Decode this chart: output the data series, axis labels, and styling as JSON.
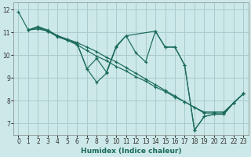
{
  "xlabel": "Humidex (Indice chaleur)",
  "xlim": [
    -0.5,
    23.5
  ],
  "ylim": [
    6.5,
    12.3
  ],
  "xticks": [
    0,
    1,
    2,
    3,
    4,
    5,
    6,
    7,
    8,
    9,
    10,
    11,
    12,
    13,
    14,
    15,
    16,
    17,
    18,
    19,
    20,
    21,
    22,
    23
  ],
  "yticks": [
    7,
    8,
    9,
    10,
    11,
    12
  ],
  "bg_color": "#cce8e8",
  "grid_color": "#aacccc",
  "line_color": "#1a6b5a",
  "lines": [
    {
      "x": [
        0,
        1,
        2,
        3,
        4,
        5,
        6,
        7,
        8,
        9,
        10,
        11,
        12,
        13,
        14,
        15,
        16,
        17,
        18,
        19,
        20,
        21,
        22,
        23
      ],
      "y": [
        11.9,
        11.1,
        11.15,
        11.05,
        10.8,
        10.65,
        10.45,
        10.2,
        9.95,
        9.75,
        9.5,
        9.3,
        9.05,
        8.85,
        8.6,
        8.4,
        8.15,
        7.95,
        7.7,
        7.5,
        7.5,
        7.5,
        7.9,
        8.3
      ]
    },
    {
      "x": [
        1,
        2,
        3,
        4,
        5,
        6,
        7,
        8,
        9,
        10,
        11,
        12,
        13,
        14,
        15,
        16,
        17,
        18,
        19,
        20,
        21,
        22,
        23
      ],
      "y": [
        11.1,
        11.25,
        11.1,
        10.85,
        10.7,
        10.55,
        10.35,
        10.15,
        9.9,
        9.7,
        9.45,
        9.2,
        8.95,
        8.7,
        8.45,
        8.2,
        7.95,
        7.7,
        7.45,
        7.45,
        7.45,
        7.9,
        8.3
      ]
    },
    {
      "x": [
        1,
        2,
        3,
        4,
        5,
        6,
        7,
        8,
        9,
        10,
        11,
        12,
        13,
        14,
        15,
        16,
        17,
        18,
        19,
        20,
        21,
        22,
        23
      ],
      "y": [
        11.1,
        11.25,
        11.05,
        10.85,
        10.65,
        10.5,
        9.4,
        9.85,
        9.25,
        10.4,
        10.85,
        10.1,
        9.7,
        11.05,
        10.35,
        10.35,
        9.55,
        6.7,
        7.3,
        7.4,
        7.4,
        7.9,
        8.3
      ]
    },
    {
      "x": [
        1,
        2,
        3,
        4,
        5,
        6,
        7,
        8,
        9,
        10,
        11,
        14,
        15,
        16,
        17,
        18,
        19,
        20,
        21,
        22,
        23
      ],
      "y": [
        11.1,
        11.2,
        11.05,
        10.85,
        10.65,
        10.5,
        9.4,
        8.8,
        9.2,
        10.35,
        10.85,
        11.05,
        10.35,
        10.35,
        9.55,
        6.7,
        7.3,
        7.4,
        7.4,
        7.9,
        8.3
      ]
    }
  ]
}
